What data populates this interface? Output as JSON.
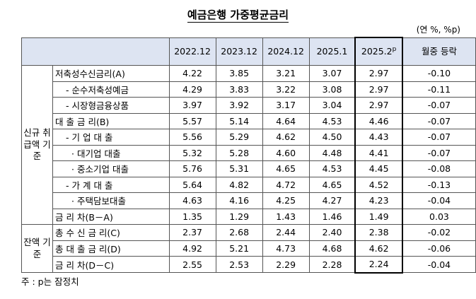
{
  "title": "예금은행 가중평균금리",
  "unit": "(연 %, %p)",
  "table": {
    "header": [
      "2022.12",
      "2023.12",
      "2024.12",
      "2025.1",
      "2025.2",
      "월중 등락"
    ],
    "header_sup": "p",
    "groups": [
      {
        "label": "신규 취급액 기준",
        "rows": [
          {
            "label": "저축성수신금리(A)",
            "values": [
              "4.22",
              "3.85",
              "3.21",
              "3.07",
              "2.97",
              "-0.10"
            ]
          },
          {
            "label": "- 순수저축성예금",
            "values": [
              "4.29",
              "3.83",
              "3.22",
              "3.08",
              "2.97",
              "-0.11"
            ]
          },
          {
            "label": "- 시장형금융상품",
            "values": [
              "3.97",
              "3.92",
              "3.17",
              "3.04",
              "2.97",
              "-0.07"
            ]
          },
          {
            "label": "대 출 금 리(B)",
            "values": [
              "5.57",
              "5.14",
              "4.64",
              "4.53",
              "4.46",
              "-0.07"
            ]
          },
          {
            "label": "- 기 업 대 출",
            "values": [
              "5.56",
              "5.29",
              "4.62",
              "4.50",
              "4.43",
              "-0.07"
            ]
          },
          {
            "label": "· 대기업 대출",
            "values": [
              "5.32",
              "5.28",
              "4.60",
              "4.48",
              "4.41",
              "-0.07"
            ]
          },
          {
            "label": "· 중소기업 대출",
            "values": [
              "5.76",
              "5.31",
              "4.65",
              "4.53",
              "4.45",
              "-0.08"
            ]
          },
          {
            "label": "- 가 계 대 출",
            "values": [
              "5.64",
              "4.82",
              "4.72",
              "4.65",
              "4.52",
              "-0.13"
            ]
          },
          {
            "label": "· 주택담보대출",
            "values": [
              "4.63",
              "4.16",
              "4.25",
              "4.27",
              "4.23",
              "-0.04"
            ]
          },
          {
            "label": "금 리 차(B－A)",
            "values": [
              "1.35",
              "1.29",
              "1.43",
              "1.46",
              "1.49",
              "0.03"
            ]
          }
        ]
      },
      {
        "label": "잔액 기준",
        "rows": [
          {
            "label": "총 수 신 금 리(C)",
            "values": [
              "2.37",
              "2.68",
              "2.44",
              "2.40",
              "2.38",
              "-0.02"
            ]
          },
          {
            "label": "총 대 출 금 리(D)",
            "values": [
              "4.92",
              "5.21",
              "4.73",
              "4.68",
              "4.62",
              "-0.06"
            ]
          },
          {
            "label": "금 리 차(D－C)",
            "values": [
              "2.55",
              "2.53",
              "2.29",
              "2.28",
              "2.24",
              "-0.04"
            ]
          }
        ]
      }
    ]
  },
  "note": "주 : p는 잠정치"
}
